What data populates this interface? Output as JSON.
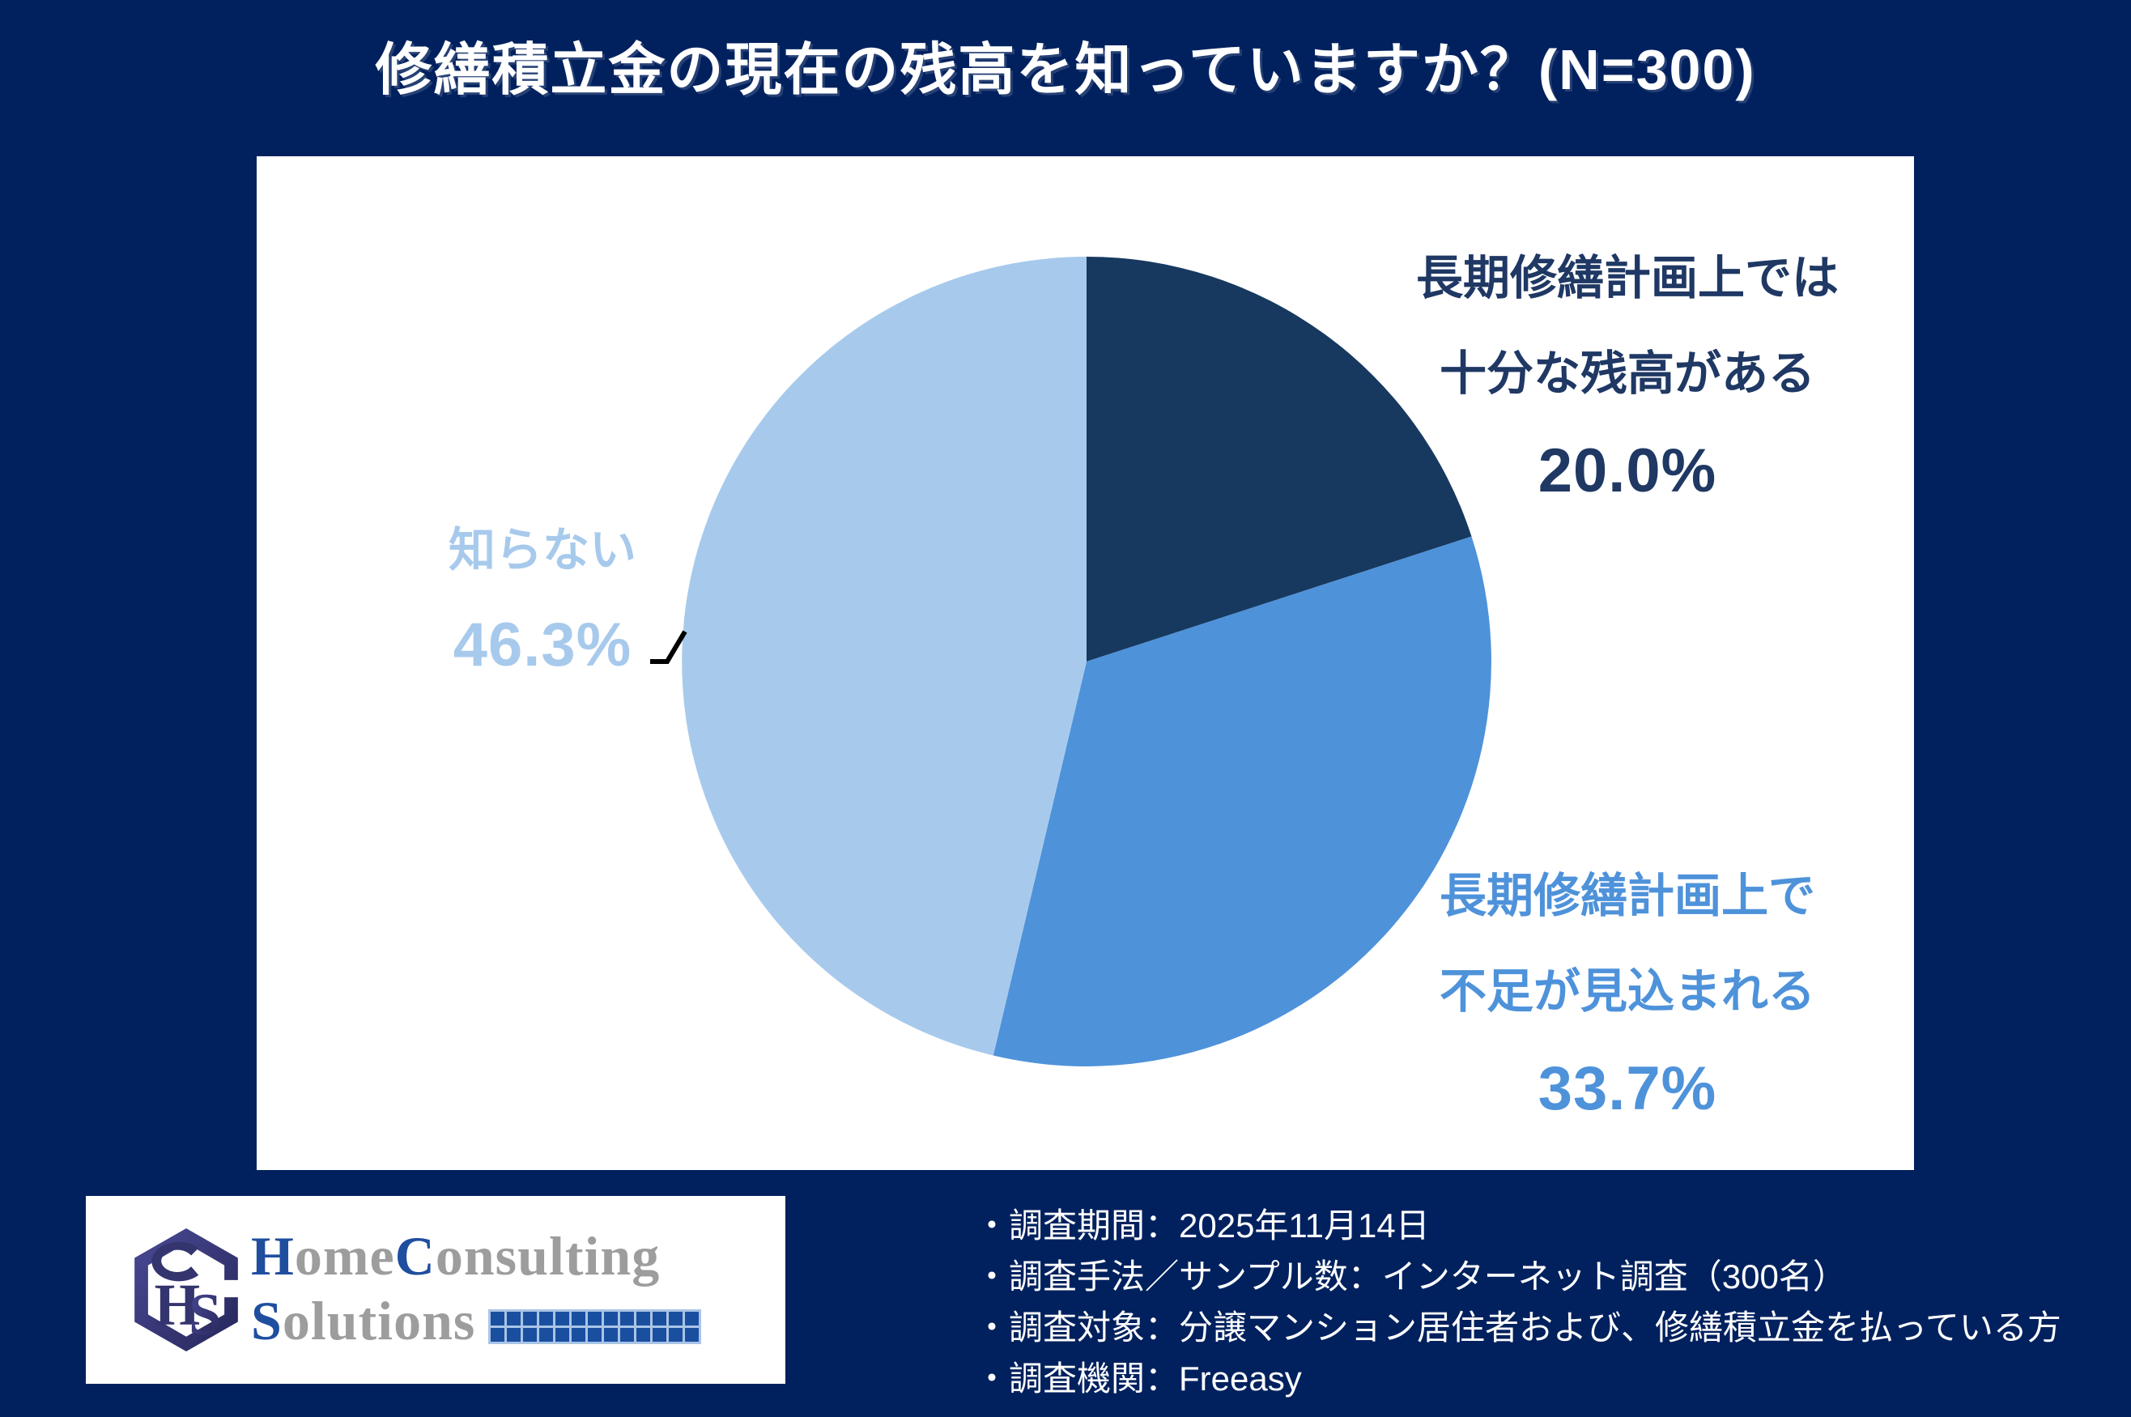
{
  "title": "修繕積立金の現在の残高を知っていますか？(N=300)",
  "chart_data": {
    "type": "pie",
    "title": "修繕積立金の現在の残高を知っていますか？",
    "sample_label": "N=300",
    "sample_size": 300,
    "categories": [
      "長期修繕計画上では十分な残高がある",
      "長期修繕計画上で不足が見込まれる",
      "知らない"
    ],
    "values": [
      20.0,
      33.7,
      46.3
    ],
    "unit": "%",
    "colors": [
      "#17395F",
      "#4E92DA",
      "#A7CAEC"
    ],
    "start_angle_deg": 0,
    "direction": "clockwise",
    "legend_position": "none",
    "data_labels": [
      "20.0%",
      "33.7%",
      "46.3%"
    ]
  },
  "chart_labels": {
    "sufficient": {
      "line1": "長期修繕計画上では",
      "line2": "十分な残高がある",
      "value": "20.0%"
    },
    "shortfall": {
      "line1": "長期修繕計画上で",
      "line2": "不足が見込まれる",
      "value": "33.7%"
    },
    "unknown": {
      "line1": "知らない",
      "value": "46.3%"
    }
  },
  "footer": {
    "logo": {
      "monogram": "HS",
      "line1_parts": [
        {
          "text": "H",
          "tone": "blue"
        },
        {
          "text": "ome",
          "tone": "gray"
        },
        {
          "text": "C",
          "tone": "blue"
        },
        {
          "text": "onsulting",
          "tone": "gray"
        }
      ],
      "line2_parts": [
        {
          "text": "S",
          "tone": "blue"
        },
        {
          "text": "olutions",
          "tone": "gray"
        }
      ],
      "squares": {
        "rows": 2,
        "cols": 13
      }
    },
    "survey_notes": [
      "・調査期間：2025年11月14日",
      "・調査手法／サンプル数：インターネット調査（300名）",
      "・調査対象：分譲マンション居住者および、修繕積立金を払っている方",
      "・調査機関：Freeasy"
    ]
  },
  "colors": {
    "background": "#01215E",
    "panel": "#FFFFFF",
    "title_text": "#FFFFFF",
    "label_dark": "#1F3864",
    "label_mid": "#4E92DA",
    "label_light": "#A7CAEC",
    "leader_line": "#000000",
    "logo_blue": "#1F4E9F",
    "logo_gray": "#9D9D9D",
    "logo_square_blue": "#1A4FA0"
  }
}
